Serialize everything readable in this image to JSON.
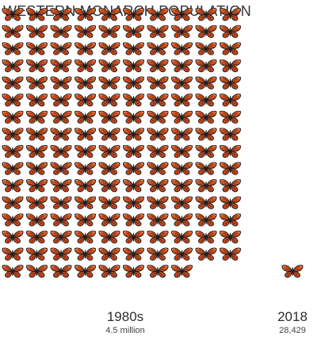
{
  "chart_data": {
    "type": "bar",
    "title": "WESTERN MONARCH POPULATION",
    "categories": [
      "1980s",
      "2018"
    ],
    "values": [
      4500000,
      28429
    ],
    "value_labels": [
      "4.5 million",
      "28,429"
    ],
    "mark": "butterfly-icon",
    "grid": false,
    "legend": "none"
  },
  "colors": {
    "butterfly_orange": "#d9531e",
    "butterfly_veins": "#1c1c1c",
    "text": "#333333"
  }
}
